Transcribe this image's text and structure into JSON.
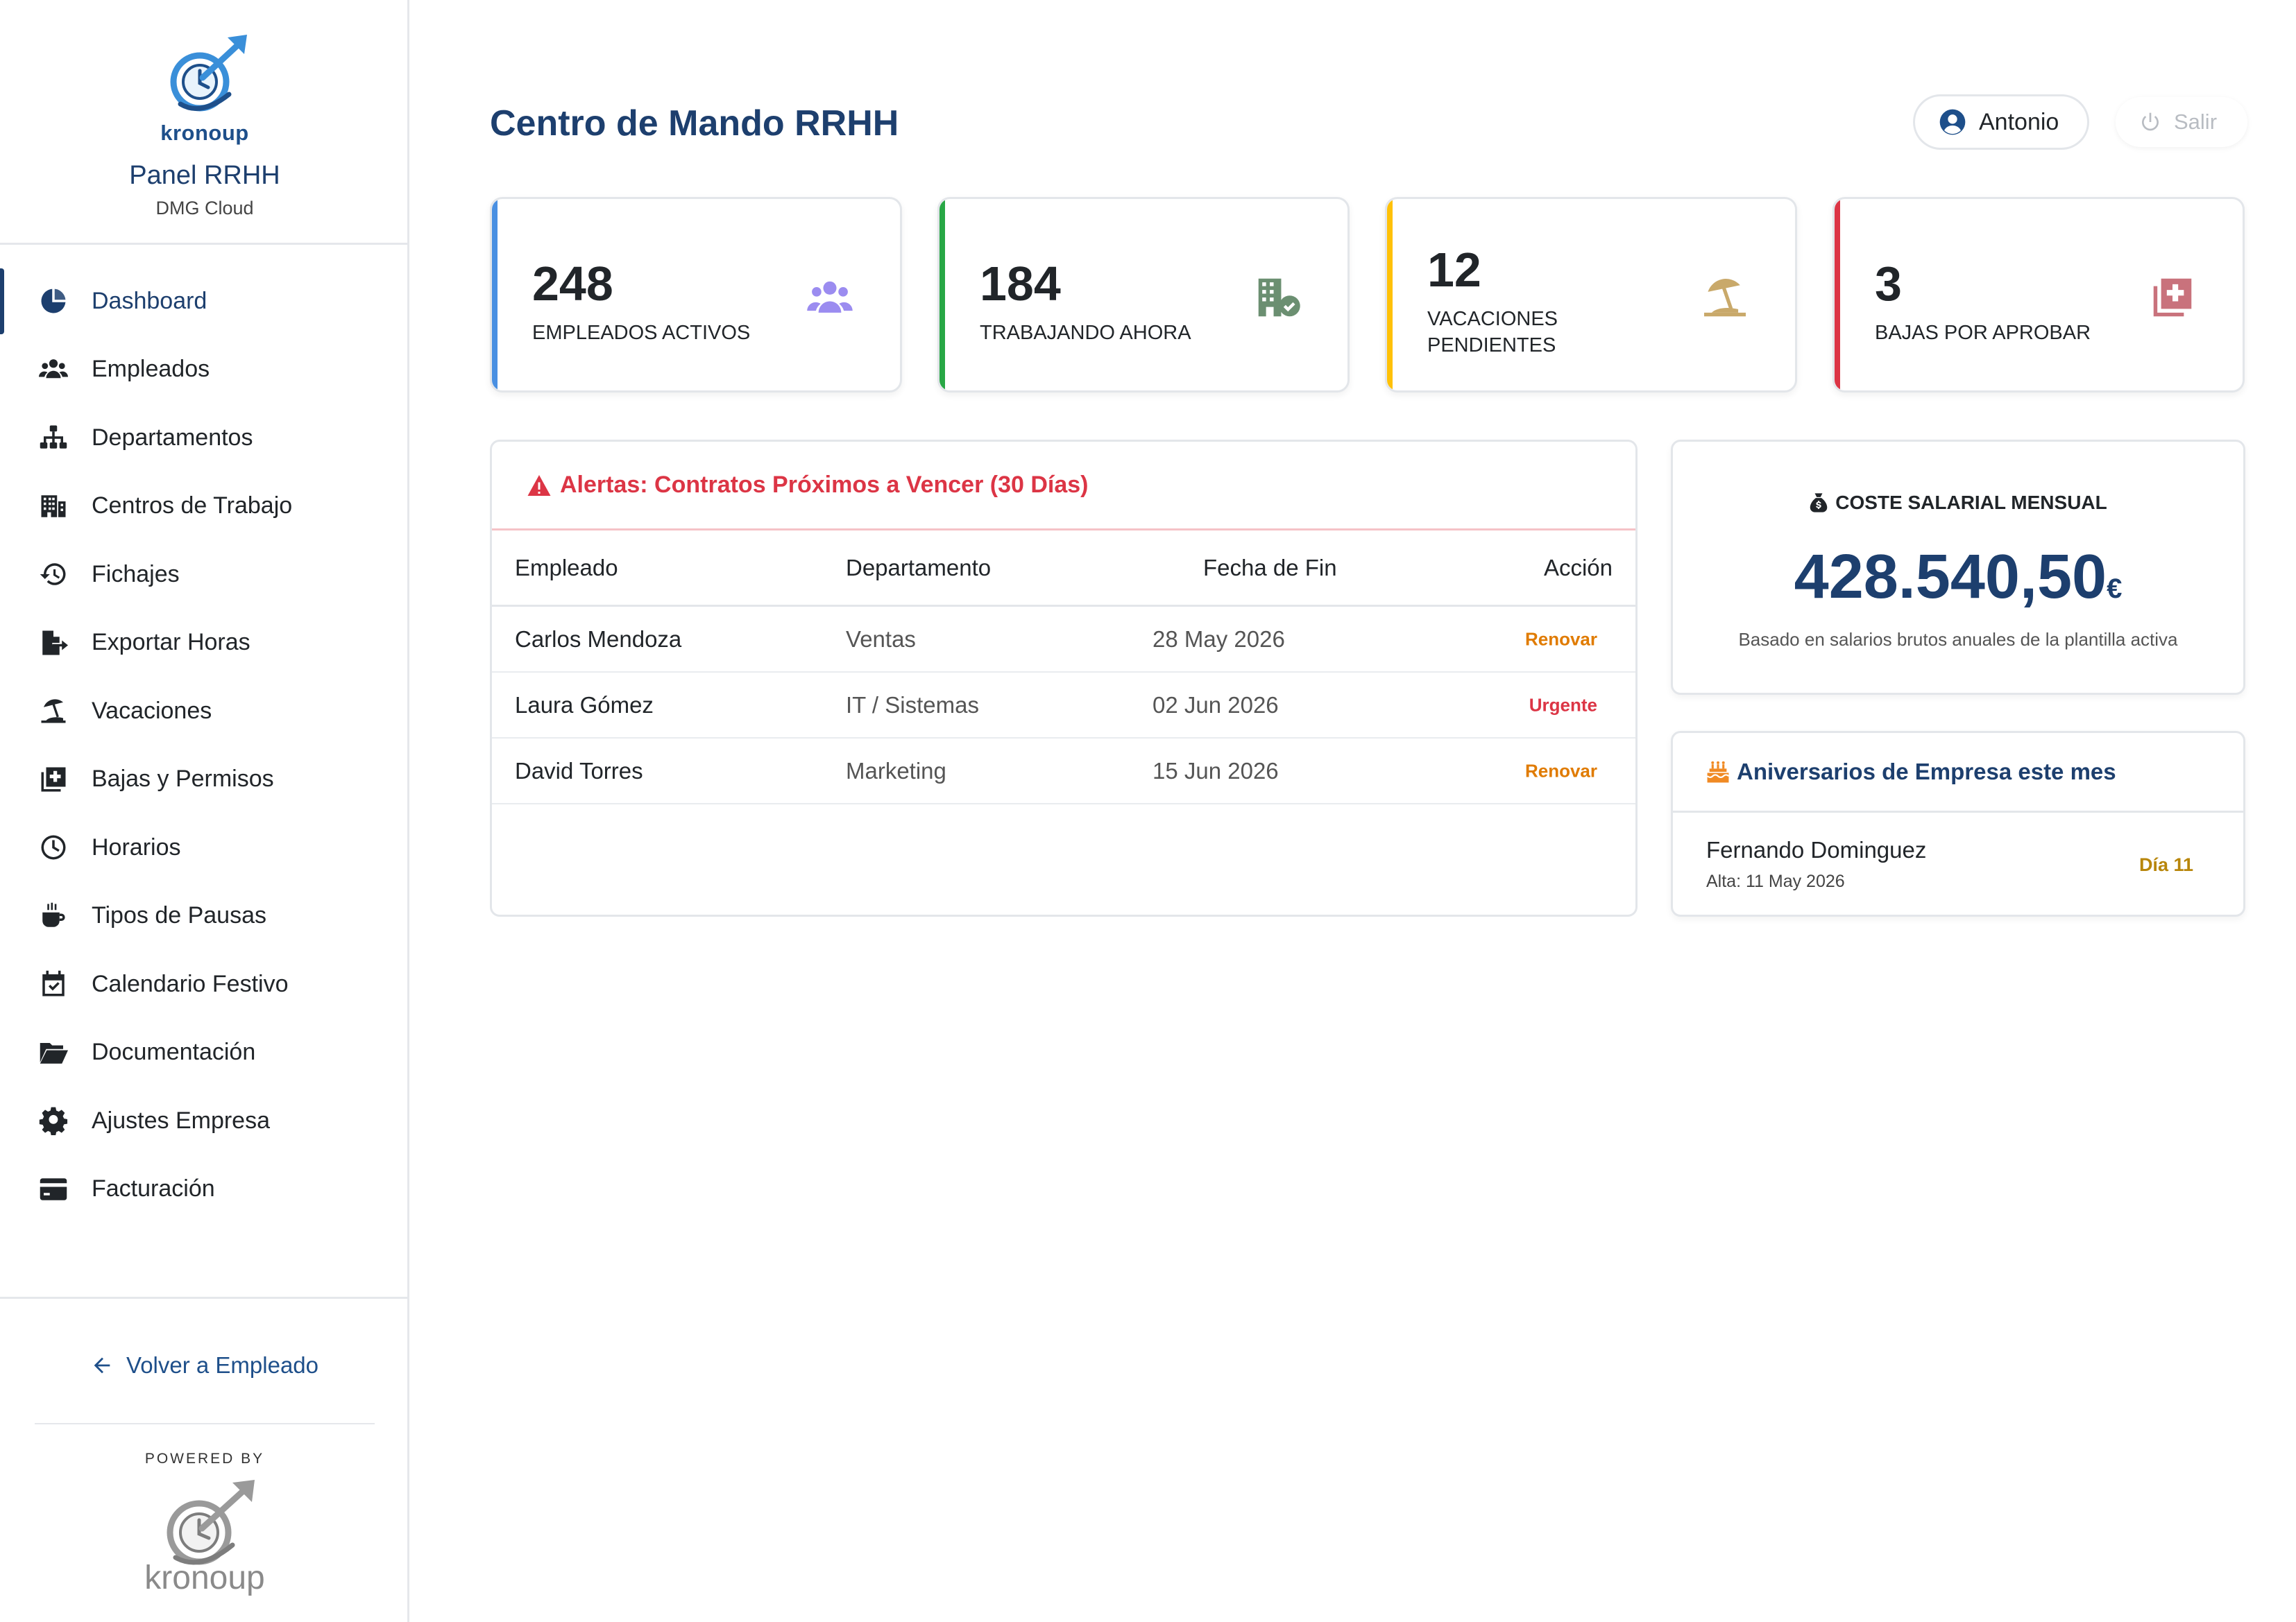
{
  "sidebar": {
    "brand_name": "kronoup",
    "panel_title": "Panel RRHH",
    "panel_subtitle": "DMG Cloud",
    "items": [
      {
        "label": "Dashboard",
        "icon": "pie-chart-icon",
        "active": true
      },
      {
        "label": "Empleados",
        "icon": "users-icon"
      },
      {
        "label": "Departamentos",
        "icon": "sitemap-icon"
      },
      {
        "label": "Centros de Trabajo",
        "icon": "building-icon"
      },
      {
        "label": "Fichajes",
        "icon": "history-icon"
      },
      {
        "label": "Exportar Horas",
        "icon": "file-export-icon"
      },
      {
        "label": "Vacaciones",
        "icon": "umbrella-beach-icon"
      },
      {
        "label": "Bajas y Permisos",
        "icon": "medical-file-icon"
      },
      {
        "label": "Horarios",
        "icon": "clock-icon"
      },
      {
        "label": "Tipos de Pausas",
        "icon": "coffee-icon"
      },
      {
        "label": "Calendario Festivo",
        "icon": "calendar-check-icon"
      },
      {
        "label": "Documentación",
        "icon": "folder-open-icon"
      },
      {
        "label": "Ajustes Empresa",
        "icon": "gear-icon"
      },
      {
        "label": "Facturación",
        "icon": "credit-card-icon"
      }
    ],
    "back_link": "Volver a Empleado",
    "powered_by": "POWERED BY",
    "powered_brand": "kronoup"
  },
  "header": {
    "title": "Centro de Mando RRHH",
    "user_name": "Antonio",
    "logout_label": "Salir"
  },
  "stats": [
    {
      "value": "248",
      "label": "EMPLEADOS ACTIVOS",
      "color": "#4a90e2",
      "icon": "users-icon"
    },
    {
      "value": "184",
      "label": "TRABAJANDO AHORA",
      "color": "#28a745",
      "icon": "building-check-icon"
    },
    {
      "value": "12",
      "label": "VACACIONES PENDIENTES",
      "color": "#ffc107",
      "icon": "umbrella-beach-icon"
    },
    {
      "value": "3",
      "label": "BAJAS POR APROBAR",
      "color": "#dc3545",
      "icon": "medical-file-icon"
    }
  ],
  "alerts": {
    "title": "Alertas: Contratos Próximos a Vencer (30 Días)",
    "columns": [
      "Empleado",
      "Departamento",
      "Fecha de Fin",
      "Acción"
    ],
    "rows": [
      {
        "employee": "Carlos Mendoza",
        "department": "Ventas",
        "end_date": "28 May 2026",
        "action": "Renovar",
        "action_color": "#e07b00"
      },
      {
        "employee": "Laura Gómez",
        "department": "IT / Sistemas",
        "end_date": "02 Jun 2026",
        "action": "Urgente",
        "action_color": "#dc3545"
      },
      {
        "employee": "David Torres",
        "department": "Marketing",
        "end_date": "15 Jun 2026",
        "action": "Renovar",
        "action_color": "#e07b00"
      }
    ]
  },
  "salary": {
    "label": "COSTE SALARIAL MENSUAL",
    "value": "428.540,50",
    "currency": "€",
    "note": "Basado en salarios brutos anuales de la plantilla activa"
  },
  "anniversaries": {
    "title": "Aniversarios de Empresa este mes",
    "items": [
      {
        "name": "Fernando Dominguez",
        "subtitle": "Alta: 11 May 2026",
        "day": "Día 11"
      }
    ]
  },
  "colors": {
    "primary": "#1d3f6e",
    "danger": "#dc3545",
    "warning": "#e07b00"
  }
}
